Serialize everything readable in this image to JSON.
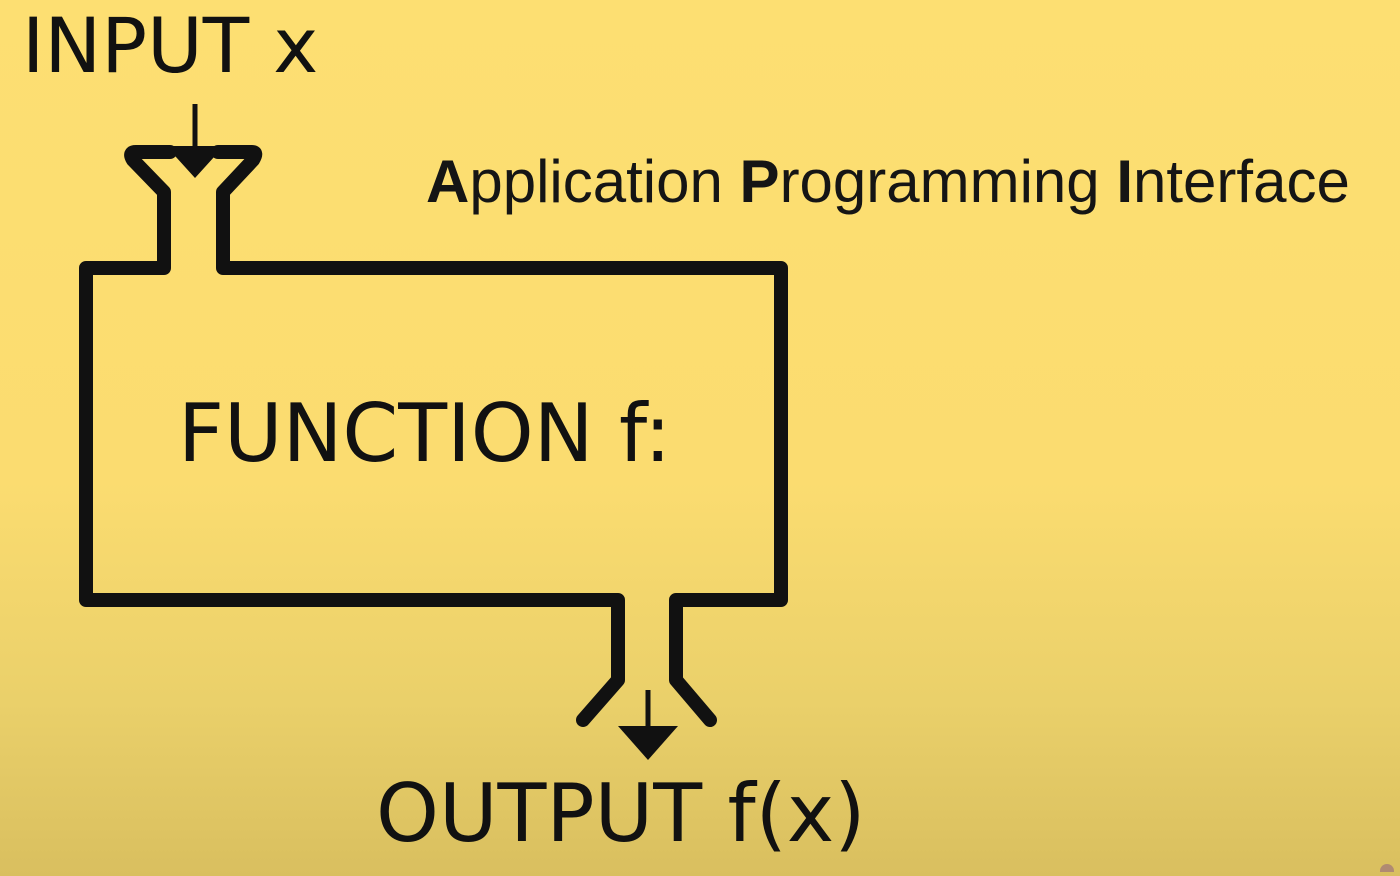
{
  "input": {
    "label": "INPUT x"
  },
  "function": {
    "label": "FUNCTION f:"
  },
  "output": {
    "label": "OUTPUT f(x)"
  },
  "title": {
    "parts": [
      {
        "initial": "A",
        "rest": "pplication"
      },
      {
        "initial": "P",
        "rest": "rogramming"
      },
      {
        "initial": "I",
        "rest": "nterface"
      }
    ]
  },
  "colors": {
    "background": "#fddf72",
    "stroke": "#111111"
  }
}
